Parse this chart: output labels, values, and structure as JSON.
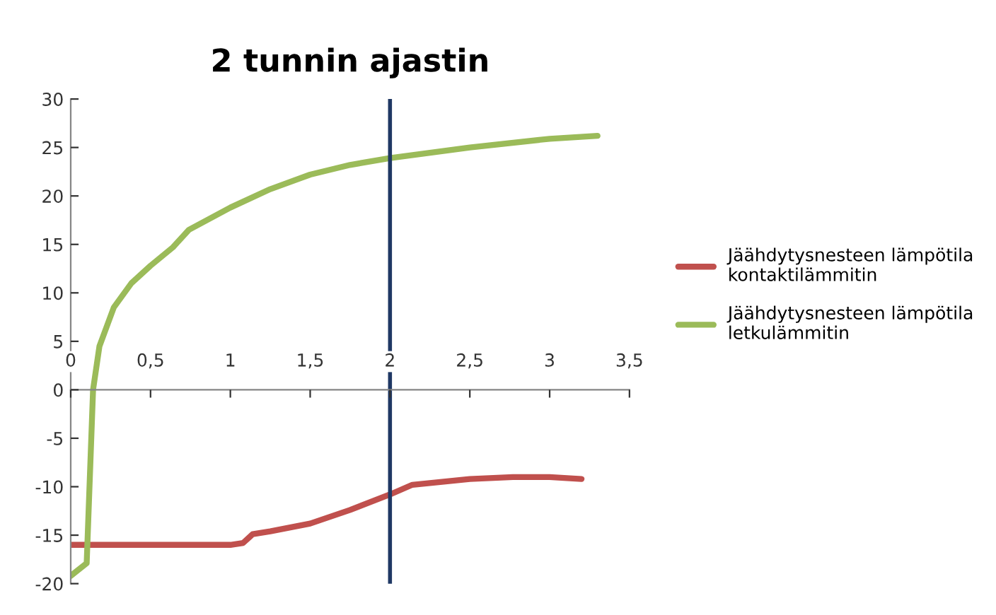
{
  "chart_data": {
    "type": "line",
    "title": "2 tunnin ajastin",
    "xlim": [
      0,
      3.5
    ],
    "xticks": [
      0,
      {
        "value": 0.5,
        "label": "0,5"
      },
      1,
      {
        "value": 1.5,
        "label": "1,5"
      },
      2,
      {
        "value": 2.5,
        "label": "2,5"
      },
      3,
      {
        "value": 3.5,
        "label": "3,5"
      }
    ],
    "ylim": [
      -20,
      30
    ],
    "yticks": [
      -20,
      -15,
      -10,
      -5,
      0,
      5,
      10,
      15,
      20,
      25,
      30
    ],
    "grid": false,
    "legend": "right",
    "marker": "none",
    "line_style": "solid",
    "series": [
      {
        "name": "Jäähdytysnesteen lämpötila kontaktilämmitin",
        "color": "#c0504d",
        "x": [
          0,
          0.5,
          1,
          1.08,
          1.14,
          1.25,
          1.5,
          1.75,
          2,
          2.14,
          2.5,
          2.77,
          3,
          3.2
        ],
        "values": [
          -16,
          -16,
          -16,
          -15.8,
          -14.9,
          -14.6,
          -13.8,
          -12.4,
          -10.8,
          -9.8,
          -9.2,
          -9,
          -9,
          -9.2
        ]
      },
      {
        "name": "Jäähdytysnesteen lämpötila letkulämmitin",
        "color": "#9bbb59",
        "x": [
          0,
          0.1,
          0.14,
          0.18,
          0.27,
          0.38,
          0.5,
          0.64,
          0.74,
          1,
          1.25,
          1.5,
          1.75,
          2,
          2.5,
          3,
          3.3
        ],
        "values": [
          -19.2,
          -17.9,
          0,
          4.5,
          8.5,
          11,
          12.8,
          14.7,
          16.5,
          18.8,
          20.7,
          22.2,
          23.2,
          23.9,
          25,
          25.9,
          26.2
        ]
      }
    ],
    "ref_lines": [
      {
        "axis": "x",
        "value": 2,
        "color": "#1f3864"
      }
    ]
  }
}
